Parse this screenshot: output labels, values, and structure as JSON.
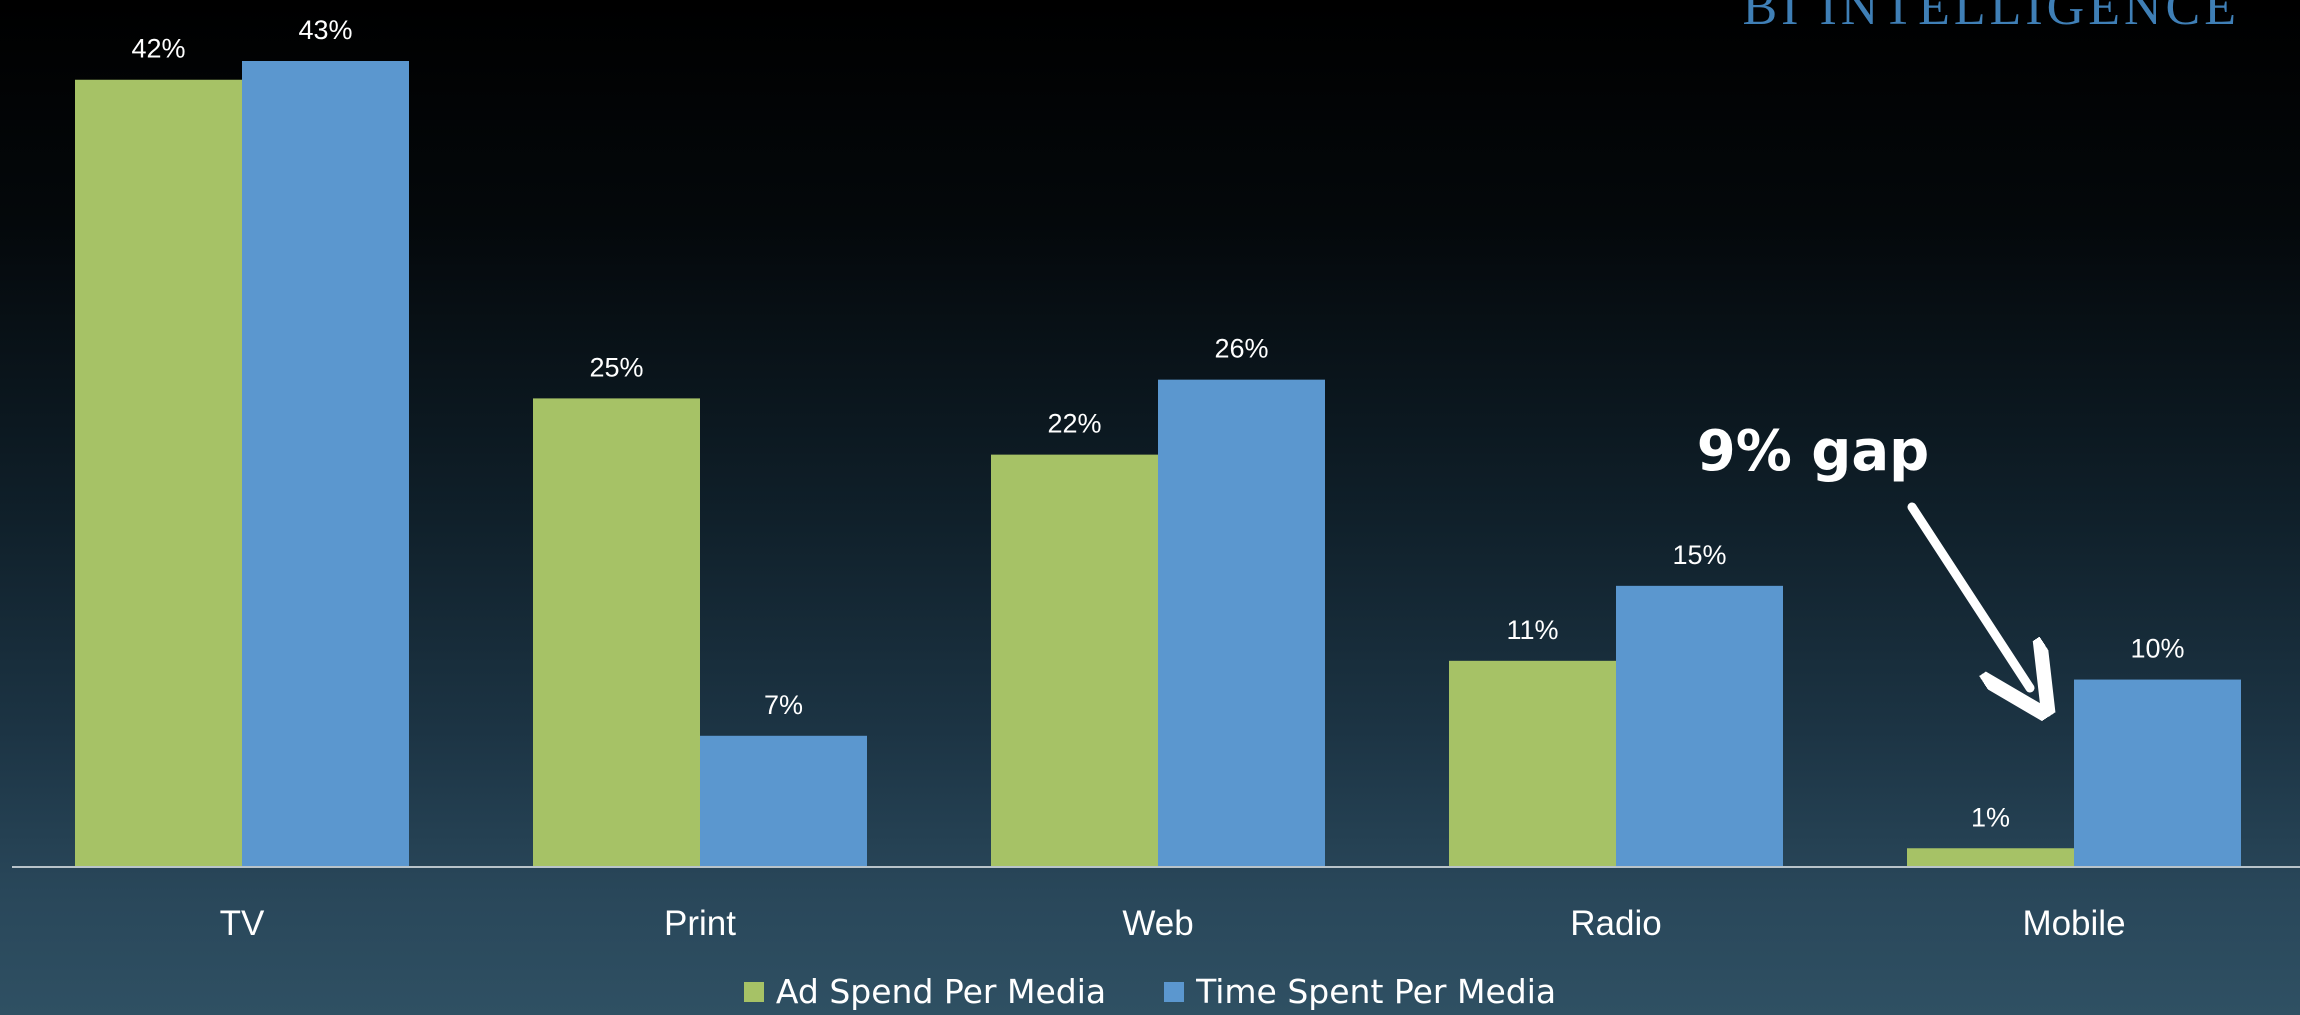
{
  "brand": "BI INTELLIGENCE",
  "colors": {
    "ad_spend": "#a6c266",
    "time_spent": "#5b97cf",
    "axis": "#b8c3ca",
    "text": "#ffffff"
  },
  "annotation": {
    "text": "9% gap"
  },
  "chart_data": {
    "type": "bar",
    "categories": [
      "TV",
      "Print",
      "Web",
      "Radio",
      "Mobile"
    ],
    "series": [
      {
        "name": "Ad Spend Per Media",
        "values": [
          42,
          25,
          22,
          11,
          1
        ],
        "labels": [
          "42%",
          "25%",
          "22%",
          "11%",
          "1%"
        ]
      },
      {
        "name": "Time Spent Per Media",
        "values": [
          43,
          7,
          26,
          15,
          10
        ],
        "labels": [
          "43%",
          "7%",
          "26%",
          "15%",
          "10%"
        ]
      }
    ],
    "ylim": [
      0,
      43
    ],
    "grid": false,
    "legend": "bottom-center",
    "annotations": [
      "9% gap"
    ]
  }
}
